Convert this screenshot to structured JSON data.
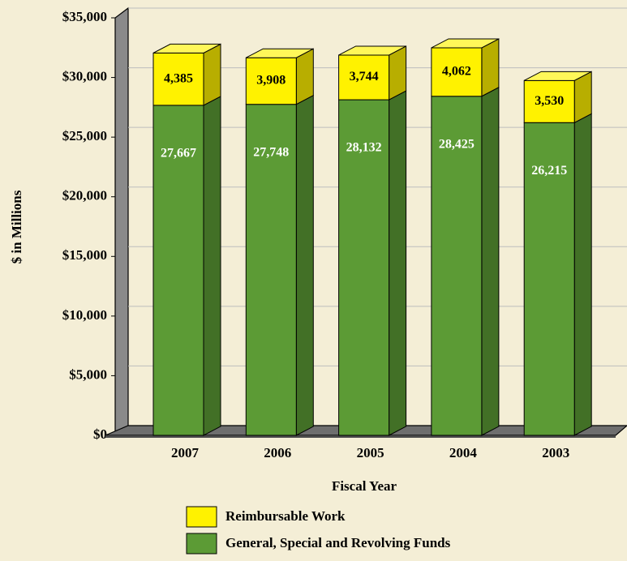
{
  "chart_data": {
    "type": "stacked_bar",
    "x_label": "Fiscal Year",
    "y_label": "$ in Millions",
    "categories": [
      "2007",
      "2006",
      "2005",
      "2004",
      "2003"
    ],
    "series": [
      {
        "name": "General, Special and Revolving Funds",
        "color": "#5c9b35",
        "values": [
          27667,
          27748,
          28132,
          28425,
          26215
        ],
        "value_labels": [
          "27,667",
          "27,748",
          "28,132",
          "28,425",
          "26,215"
        ]
      },
      {
        "name": "Reimbursable Work",
        "color": "#fff200",
        "values": [
          4385,
          3908,
          3744,
          4062,
          3530
        ],
        "value_labels": [
          "4,385",
          "3,908",
          "3,744",
          "4,062",
          "3,530"
        ]
      }
    ],
    "ylim": [
      0,
      35000
    ],
    "yticks": [
      {
        "value": 0,
        "label": "$0"
      },
      {
        "value": 5000,
        "label": "$5,000"
      },
      {
        "value": 10000,
        "label": "$10,000"
      },
      {
        "value": 15000,
        "label": "$15,000"
      },
      {
        "value": 20000,
        "label": "$20,000"
      },
      {
        "value": 25000,
        "label": "$25,000"
      },
      {
        "value": 30000,
        "label": "$30,000"
      },
      {
        "value": 35000,
        "label": "$35,000"
      }
    ],
    "grid": true
  }
}
